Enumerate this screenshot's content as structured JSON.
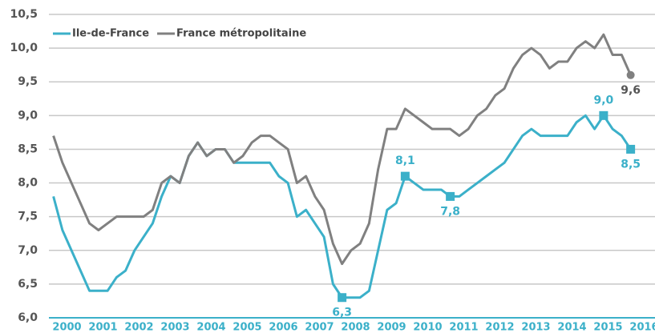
{
  "chart_data": {
    "type": "line",
    "x": [
      2000.125,
      2000.375,
      2000.625,
      2000.875,
      2001.125,
      2001.375,
      2001.625,
      2001.875,
      2002.125,
      2002.375,
      2002.625,
      2002.875,
      2003.125,
      2003.375,
      2003.625,
      2003.875,
      2004.125,
      2004.375,
      2004.625,
      2004.875,
      2005.125,
      2005.375,
      2005.625,
      2005.875,
      2006.125,
      2006.375,
      2006.625,
      2006.875,
      2007.125,
      2007.375,
      2007.625,
      2007.875,
      2008.125,
      2008.375,
      2008.625,
      2008.875,
      2009.125,
      2009.375,
      2009.625,
      2009.875,
      2010.125,
      2010.375,
      2010.625,
      2010.875,
      2011.125,
      2011.375,
      2011.625,
      2011.875,
      2012.125,
      2012.375,
      2012.625,
      2012.875,
      2013.125,
      2013.375,
      2013.625,
      2013.875,
      2014.125,
      2014.375,
      2014.625,
      2014.875,
      2015.125,
      2015.375,
      2015.625,
      2015.875,
      2016.125
    ],
    "series": [
      {
        "name": "Ile-de-France",
        "color": "#3bb0c9",
        "marker": "square",
        "values": [
          7.8,
          7.3,
          7.0,
          6.7,
          6.4,
          6.4,
          6.4,
          6.6,
          6.7,
          7.0,
          7.2,
          7.4,
          7.8,
          8.1,
          8.0,
          8.4,
          8.6,
          8.4,
          8.5,
          8.5,
          8.3,
          8.3,
          8.3,
          8.3,
          8.3,
          8.1,
          8.0,
          7.5,
          7.6,
          7.4,
          7.2,
          6.5,
          6.3,
          6.3,
          6.3,
          6.4,
          7.0,
          7.6,
          7.7,
          8.1,
          8.0,
          7.9,
          7.9,
          7.9,
          7.8,
          7.8,
          7.9,
          8.0,
          8.1,
          8.2,
          8.3,
          8.5,
          8.7,
          8.8,
          8.7,
          8.7,
          8.7,
          8.7,
          8.9,
          9.0,
          8.8,
          9.0,
          8.8,
          8.7,
          8.5
        ],
        "value_labels": [
          null,
          null,
          null,
          null,
          null,
          null,
          null,
          null,
          null,
          null,
          null,
          null,
          null,
          null,
          null,
          null,
          null,
          null,
          null,
          null,
          null,
          null,
          null,
          null,
          null,
          null,
          null,
          null,
          null,
          null,
          null,
          null,
          "6,3",
          null,
          null,
          null,
          null,
          null,
          null,
          "8,1",
          null,
          null,
          null,
          null,
          "7,8",
          null,
          null,
          null,
          null,
          null,
          null,
          null,
          null,
          null,
          null,
          null,
          null,
          null,
          null,
          null,
          null,
          "9,0",
          null,
          null,
          "8,5"
        ]
      },
      {
        "name": "France métropolitaine",
        "color": "#808080",
        "marker": "circle",
        "values": [
          8.7,
          8.3,
          8.0,
          7.7,
          7.4,
          7.3,
          7.4,
          7.5,
          7.5,
          7.5,
          7.5,
          7.6,
          8.0,
          8.1,
          8.0,
          8.4,
          8.6,
          8.4,
          8.5,
          8.5,
          8.3,
          8.4,
          8.6,
          8.7,
          8.7,
          8.6,
          8.5,
          8.0,
          8.1,
          7.8,
          7.6,
          7.1,
          6.8,
          7.0,
          7.1,
          7.4,
          8.2,
          8.8,
          8.8,
          9.1,
          9.0,
          8.9,
          8.8,
          8.8,
          8.8,
          8.7,
          8.8,
          9.0,
          9.1,
          9.3,
          9.4,
          9.7,
          9.9,
          10.0,
          9.9,
          9.7,
          9.8,
          9.8,
          10.0,
          10.1,
          10.0,
          10.2,
          9.9,
          9.9,
          9.6
        ],
        "value_labels": [
          null,
          null,
          null,
          null,
          null,
          null,
          null,
          null,
          null,
          null,
          null,
          null,
          null,
          null,
          null,
          null,
          null,
          null,
          null,
          null,
          null,
          null,
          null,
          null,
          null,
          null,
          null,
          null,
          null,
          null,
          null,
          null,
          null,
          null,
          null,
          null,
          null,
          null,
          null,
          null,
          null,
          null,
          null,
          null,
          null,
          null,
          null,
          null,
          null,
          null,
          null,
          null,
          null,
          null,
          null,
          null,
          null,
          null,
          null,
          null,
          null,
          null,
          null,
          null,
          "9,6"
        ]
      }
    ],
    "xlim": [
      2000,
      2016.8
    ],
    "xticks": [
      {
        "value": 2000.5,
        "label": "2000"
      },
      {
        "value": 2001.5,
        "label": "2001"
      },
      {
        "value": 2002.5,
        "label": "2002"
      },
      {
        "value": 2003.5,
        "label": "2003"
      },
      {
        "value": 2004.5,
        "label": "2004"
      },
      {
        "value": 2005.5,
        "label": "2005"
      },
      {
        "value": 2006.5,
        "label": "2006"
      },
      {
        "value": 2007.5,
        "label": "2007"
      },
      {
        "value": 2008.5,
        "label": "2008"
      },
      {
        "value": 2009.5,
        "label": "2009"
      },
      {
        "value": 2010.5,
        "label": "2010"
      },
      {
        "value": 2011.5,
        "label": "2011"
      },
      {
        "value": 2012.5,
        "label": "2012"
      },
      {
        "value": 2013.5,
        "label": "2013"
      },
      {
        "value": 2014.5,
        "label": "2014"
      },
      {
        "value": 2015.5,
        "label": "2015"
      },
      {
        "value": 2016.5,
        "label": "2016"
      }
    ],
    "ylim": [
      6.0,
      10.5
    ],
    "yticks": [
      {
        "value": 6.0,
        "label": "6,0"
      },
      {
        "value": 6.5,
        "label": "6,5"
      },
      {
        "value": 7.0,
        "label": "7,0"
      },
      {
        "value": 7.5,
        "label": "7,5"
      },
      {
        "value": 8.0,
        "label": "8,0"
      },
      {
        "value": 8.5,
        "label": "8,5"
      },
      {
        "value": 9.0,
        "label": "9,0"
      },
      {
        "value": 9.5,
        "label": "9,5"
      },
      {
        "value": 10.0,
        "label": "10,0"
      },
      {
        "value": 10.5,
        "label": "10,5"
      }
    ],
    "grid": true,
    "legend": "top-left"
  }
}
